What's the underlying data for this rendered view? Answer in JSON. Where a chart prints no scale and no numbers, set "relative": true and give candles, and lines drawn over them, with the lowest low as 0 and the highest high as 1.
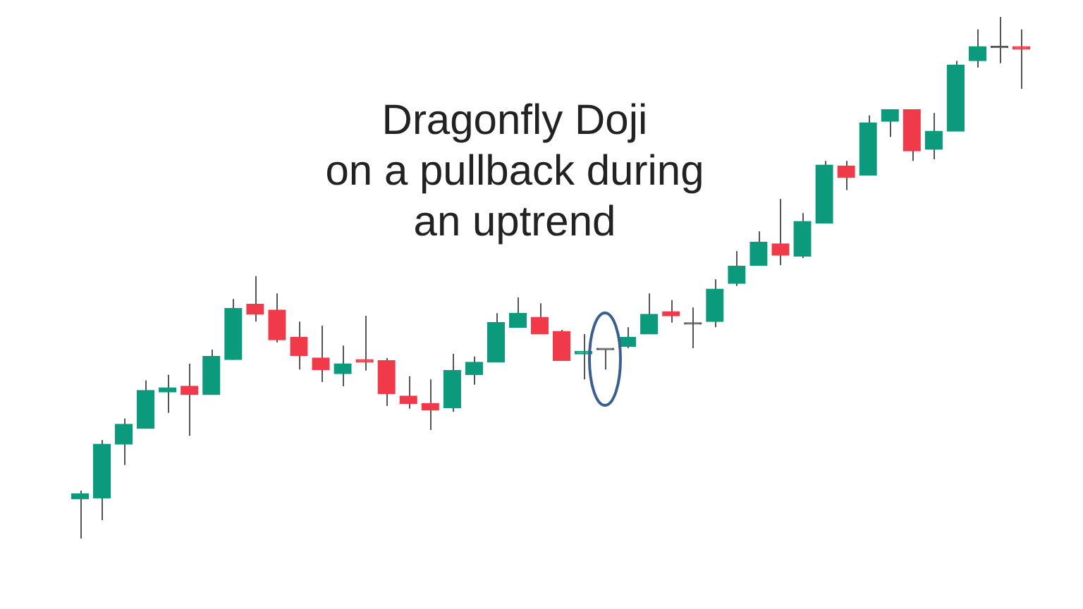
{
  "chart_data": {
    "type": "candlestick",
    "title": "Dragonfly Doji\non a pullback during\nan uptrend",
    "relative": true,
    "categories": [
      null,
      null,
      null,
      null,
      null,
      null,
      null,
      null,
      null,
      null,
      null,
      null,
      null,
      null,
      null,
      null,
      null,
      null,
      null,
      null,
      null,
      null,
      null,
      null,
      null,
      null,
      null,
      null,
      null,
      null,
      null,
      null,
      null,
      null,
      null,
      null,
      null,
      null,
      null,
      null,
      null,
      null,
      null,
      null
    ],
    "ohlc": [
      [
        0.076,
        0.092,
        0,
        0.086
      ],
      [
        0.078,
        0.189,
        0.035,
        0.181
      ],
      [
        0.181,
        0.23,
        0.141,
        0.219
      ],
      [
        0.211,
        0.303,
        0.211,
        0.284
      ],
      [
        0.281,
        0.314,
        0.241,
        0.289
      ],
      [
        0.292,
        0.335,
        0.197,
        0.276
      ],
      [
        0.276,
        0.362,
        0.276,
        0.349
      ],
      [
        0.343,
        0.459,
        0.343,
        0.441
      ],
      [
        0.449,
        0.503,
        0.416,
        0.43
      ],
      [
        0.438,
        0.47,
        0.376,
        0.381
      ],
      [
        0.386,
        0.416,
        0.324,
        0.351
      ],
      [
        0.346,
        0.408,
        0.3,
        0.324
      ],
      [
        0.316,
        0.37,
        0.292,
        0.335
      ],
      [
        0.343,
        0.427,
        0.322,
        0.338
      ],
      [
        0.341,
        0.346,
        0.254,
        0.278
      ],
      [
        0.273,
        0.311,
        0.249,
        0.259
      ],
      [
        0.259,
        0.305,
        0.208,
        0.246
      ],
      [
        0.251,
        0.354,
        0.243,
        0.322
      ],
      [
        0.314,
        0.349,
        0.295,
        0.338
      ],
      [
        0.338,
        0.432,
        0.338,
        0.414
      ],
      [
        0.405,
        0.462,
        0.405,
        0.432
      ],
      [
        0.424,
        0.451,
        0.392,
        0.392
      ],
      [
        0.397,
        0.4,
        0.341,
        0.341
      ],
      [
        0.354,
        0.392,
        0.305,
        0.359
      ],
      [
        0.362,
        0.362,
        0.324,
        0.362
      ],
      [
        0.368,
        0.405,
        0.365,
        0.386
      ],
      [
        0.392,
        0.47,
        0.392,
        0.43
      ],
      [
        0.435,
        0.457,
        0.414,
        0.427
      ],
      [
        0.411,
        0.443,
        0.365,
        0.411
      ],
      [
        0.416,
        0.497,
        0.405,
        0.478
      ],
      [
        0.489,
        0.551,
        0.484,
        0.522
      ],
      [
        0.524,
        0.589,
        0.524,
        0.568
      ],
      [
        0.565,
        0.651,
        0.524,
        0.543
      ],
      [
        0.541,
        0.624,
        0.538,
        0.608
      ],
      [
        0.605,
        0.724,
        0.605,
        0.716
      ],
      [
        0.714,
        0.724,
        0.668,
        0.692
      ],
      [
        0.697,
        0.811,
        0.697,
        0.797
      ],
      [
        0.8,
        0.822,
        0.77,
        0.822
      ],
      [
        0.822,
        0.822,
        0.724,
        0.743
      ],
      [
        0.746,
        0.816,
        0.727,
        0.781
      ],
      [
        0.781,
        0.916,
        0.781,
        0.908
      ],
      [
        0.916,
        0.976,
        0.903,
        0.943
      ],
      [
        0.941,
        1,
        0.911,
        0.941
      ],
      [
        0.943,
        0.976,
        0.862,
        0.938
      ]
    ],
    "colors": [
      "#0b9a7c",
      "#0b9a7c",
      "#0b9a7c",
      "#0b9a7c",
      "#0b9a7c",
      "#f03a4a",
      "#0b9a7c",
      "#0b9a7c",
      "#f03a4a",
      "#f03a4a",
      "#f03a4a",
      "#f03a4a",
      "#0b9a7c",
      "#f03a4a",
      "#f03a4a",
      "#f03a4a",
      "#f03a4a",
      "#0b9a7c",
      "#0b9a7c",
      "#0b9a7c",
      "#0b9a7c",
      "#f03a4a",
      "#f03a4a",
      "#0b9a7c",
      "#555555",
      "#0b9a7c",
      "#0b9a7c",
      "#f03a4a",
      "#555555",
      "#0b9a7c",
      "#0b9a7c",
      "#0b9a7c",
      "#f03a4a",
      "#0b9a7c",
      "#0b9a7c",
      "#f03a4a",
      "#0b9a7c",
      "#0b9a7c",
      "#f03a4a",
      "#0b9a7c",
      "#0b9a7c",
      "#0b9a7c",
      "#555555",
      "#f03a4a"
    ]
  }
}
